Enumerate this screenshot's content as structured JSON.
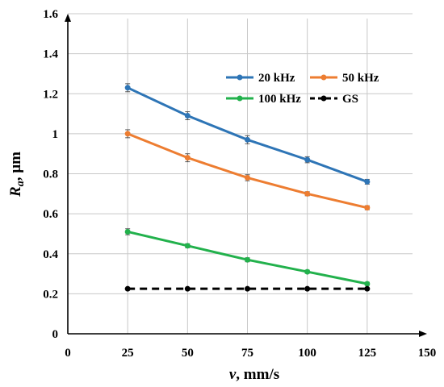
{
  "chart_data": {
    "type": "line",
    "title": "",
    "xlabel_var": "v",
    "xlabel_unit": ", mm/s",
    "ylabel_var": "R",
    "ylabel_sub": "a",
    "ylabel_unit": ", µm",
    "xlim": [
      0,
      150
    ],
    "ylim": [
      0,
      1.6
    ],
    "x_ticks": [
      0,
      25,
      50,
      75,
      100,
      125,
      150
    ],
    "y_ticks": [
      0,
      0.2,
      0.4,
      0.6,
      0.8,
      1,
      1.2,
      1.4,
      1.6
    ],
    "y_tick_labels": [
      "0",
      "0.2",
      "0.4",
      "0.6",
      "0.8",
      "1",
      "1.2",
      "1.4",
      "1.6"
    ],
    "grid": true,
    "legend_placement": "upper-right inside plot",
    "x": [
      25,
      50,
      75,
      100,
      125
    ],
    "series": [
      {
        "name": "20 kHz",
        "color": "#2e75b6",
        "dashed": false,
        "values": [
          1.23,
          1.09,
          0.97,
          0.87,
          0.76
        ],
        "errors": [
          0.02,
          0.02,
          0.02,
          0.015,
          0.012
        ]
      },
      {
        "name": "50 kHz",
        "color": "#ed7d31",
        "dashed": false,
        "values": [
          1.0,
          0.88,
          0.78,
          0.7,
          0.63
        ],
        "errors": [
          0.02,
          0.02,
          0.015,
          0.01,
          0.01
        ]
      },
      {
        "name": "100 kHz",
        "color": "#22b14c",
        "dashed": false,
        "values": [
          0.51,
          0.44,
          0.37,
          0.31,
          0.25
        ],
        "errors": [
          0.015,
          0.01,
          0.01,
          0.008,
          0.008
        ]
      },
      {
        "name": "GS",
        "color": "#000000",
        "dashed": true,
        "values": [
          0.225,
          0.225,
          0.225,
          0.225,
          0.225
        ],
        "errors": [
          0,
          0,
          0,
          0,
          0
        ]
      }
    ]
  }
}
